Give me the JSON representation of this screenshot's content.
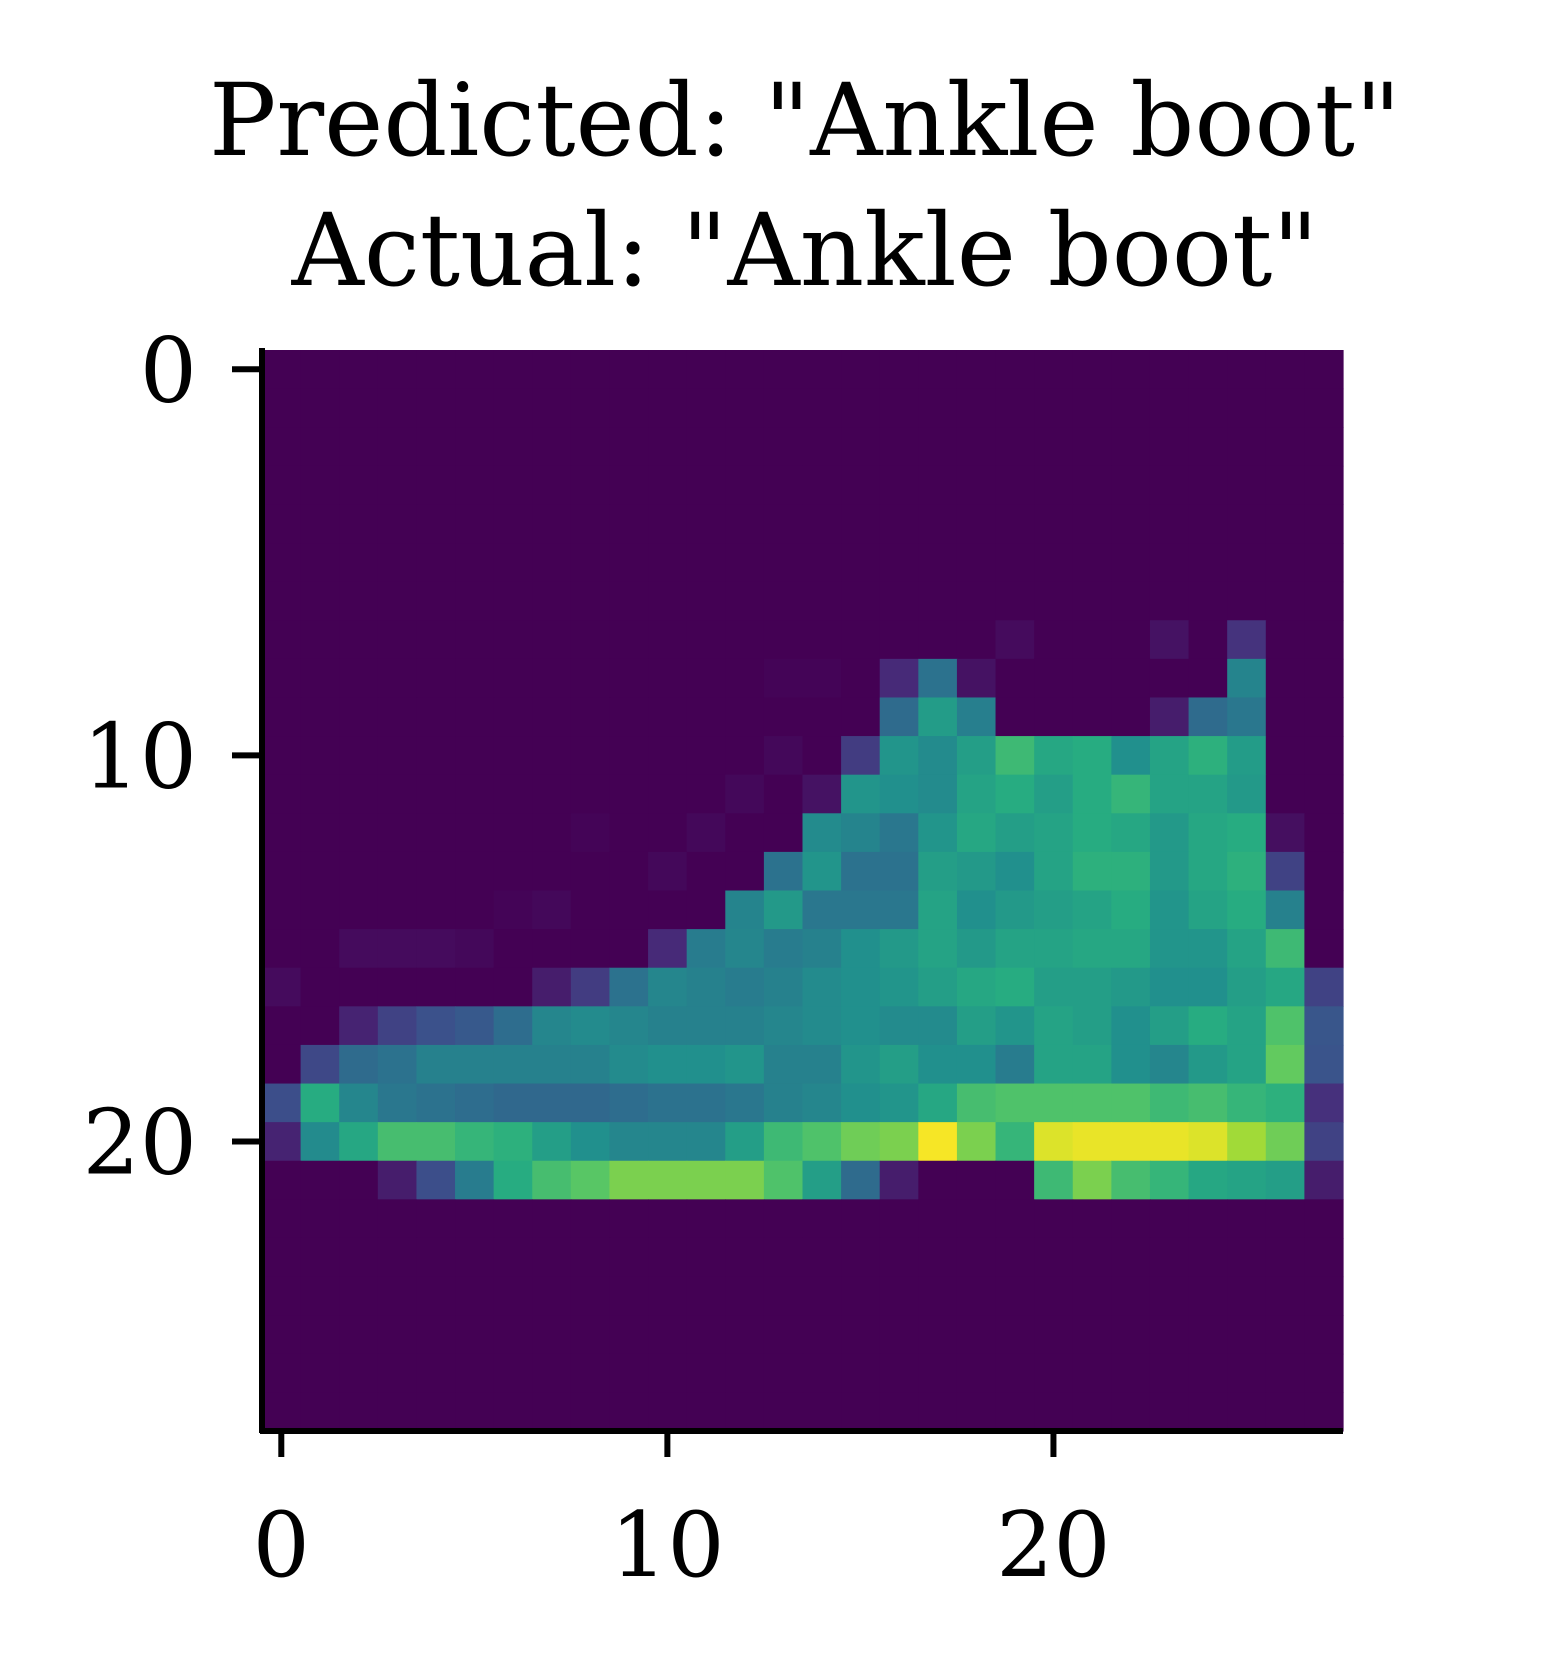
{
  "chart_data": {
    "type": "heatmap",
    "title": "Predicted: \"Ankle boot\"",
    "subtitle": "Actual: \"Ankle boot\"",
    "xlabel": "",
    "ylabel": "",
    "colormap": "viridis",
    "grid": false,
    "xlim": [
      -0.5,
      27.5
    ],
    "ylim": [
      27.5,
      -0.5
    ],
    "xticks": [
      0,
      10,
      20
    ],
    "yticks": [
      0,
      10,
      20
    ],
    "xtick_labels": [
      "0",
      "10",
      "20"
    ],
    "ytick_labels": [
      "0",
      "10",
      "20"
    ],
    "grid_size": [
      28,
      28
    ],
    "value_range": [
      0,
      1
    ],
    "values": [
      [
        0,
        0,
        0,
        0,
        0,
        0,
        0,
        0,
        0,
        0,
        0,
        0,
        0,
        0,
        0,
        0,
        0,
        0,
        0,
        0,
        0,
        0,
        0,
        0,
        0,
        0,
        0,
        0
      ],
      [
        0,
        0,
        0,
        0,
        0,
        0,
        0,
        0,
        0,
        0,
        0,
        0,
        0,
        0,
        0,
        0,
        0,
        0,
        0,
        0,
        0,
        0,
        0,
        0,
        0,
        0,
        0,
        0
      ],
      [
        0,
        0,
        0,
        0,
        0,
        0,
        0,
        0,
        0,
        0,
        0,
        0,
        0,
        0,
        0,
        0,
        0,
        0,
        0,
        0,
        0,
        0,
        0,
        0,
        0,
        0,
        0,
        0
      ],
      [
        0,
        0,
        0,
        0,
        0,
        0,
        0,
        0,
        0,
        0,
        0,
        0,
        0,
        0,
        0,
        0,
        0,
        0,
        0,
        0,
        0,
        0,
        0,
        0,
        0,
        0,
        0,
        0
      ],
      [
        0,
        0,
        0,
        0,
        0,
        0,
        0,
        0,
        0,
        0,
        0,
        0,
        0,
        0,
        0,
        0,
        0,
        0,
        0,
        0,
        0,
        0,
        0,
        0,
        0,
        0,
        0,
        0
      ],
      [
        0,
        0,
        0,
        0,
        0,
        0,
        0,
        0,
        0,
        0,
        0,
        0,
        0,
        0,
        0,
        0,
        0,
        0,
        0,
        0,
        0,
        0,
        0,
        0,
        0,
        0,
        0,
        0
      ],
      [
        0,
        0,
        0,
        0,
        0,
        0,
        0,
        0,
        0,
        0,
        0,
        0,
        0,
        0,
        0,
        0,
        0,
        0,
        0,
        0,
        0,
        0,
        0,
        0,
        0,
        0,
        0,
        0
      ],
      [
        0,
        0,
        0,
        0,
        0,
        0,
        0,
        0,
        0,
        0,
        0,
        0,
        0,
        0,
        0,
        0,
        0,
        0,
        0,
        0.03,
        0,
        0,
        0,
        0.05,
        0,
        0.15,
        0,
        0
      ],
      [
        0,
        0,
        0,
        0,
        0,
        0,
        0,
        0,
        0,
        0,
        0,
        0,
        0,
        0.01,
        0.01,
        0,
        0.12,
        0.38,
        0.05,
        0,
        0,
        0,
        0,
        0,
        0,
        0.45,
        0,
        0
      ],
      [
        0,
        0,
        0,
        0,
        0,
        0,
        0,
        0,
        0,
        0,
        0,
        0,
        0,
        0,
        0,
        0,
        0.35,
        0.55,
        0.43,
        0,
        0,
        0,
        0,
        0.08,
        0.35,
        0.4,
        0,
        0
      ],
      [
        0,
        0,
        0,
        0,
        0,
        0,
        0,
        0,
        0,
        0,
        0,
        0,
        0,
        0.02,
        0,
        0.18,
        0.52,
        0.48,
        0.56,
        0.68,
        0.6,
        0.62,
        0.5,
        0.58,
        0.64,
        0.55,
        0,
        0
      ],
      [
        0,
        0,
        0,
        0,
        0,
        0,
        0,
        0,
        0,
        0,
        0,
        0,
        0.02,
        0,
        0.05,
        0.52,
        0.5,
        0.48,
        0.58,
        0.62,
        0.56,
        0.62,
        0.66,
        0.58,
        0.58,
        0.54,
        0,
        0
      ],
      [
        0,
        0,
        0,
        0,
        0,
        0,
        0,
        0,
        0.01,
        0,
        0,
        0.02,
        0,
        0,
        0.48,
        0.45,
        0.4,
        0.52,
        0.6,
        0.56,
        0.58,
        0.62,
        0.6,
        0.54,
        0.6,
        0.62,
        0.04,
        0
      ],
      [
        0,
        0,
        0,
        0,
        0,
        0,
        0,
        0,
        0,
        0,
        0.02,
        0,
        0,
        0.38,
        0.52,
        0.38,
        0.38,
        0.56,
        0.54,
        0.5,
        0.58,
        0.64,
        0.64,
        0.54,
        0.6,
        0.64,
        0.2,
        0
      ],
      [
        0,
        0,
        0,
        0,
        0,
        0,
        0.01,
        0.02,
        0,
        0,
        0,
        0,
        0.45,
        0.54,
        0.4,
        0.4,
        0.4,
        0.58,
        0.5,
        0.54,
        0.56,
        0.58,
        0.62,
        0.52,
        0.58,
        0.62,
        0.44,
        0
      ],
      [
        0,
        0,
        0.03,
        0.03,
        0.03,
        0.02,
        0,
        0,
        0,
        0,
        0.12,
        0.42,
        0.46,
        0.42,
        0.44,
        0.5,
        0.54,
        0.58,
        0.54,
        0.58,
        0.58,
        0.6,
        0.6,
        0.52,
        0.52,
        0.58,
        0.68,
        0
      ],
      [
        0.03,
        0,
        0,
        0,
        0,
        0,
        0,
        0.08,
        0.18,
        0.38,
        0.46,
        0.44,
        0.42,
        0.44,
        0.48,
        0.5,
        0.52,
        0.56,
        0.6,
        0.62,
        0.56,
        0.56,
        0.54,
        0.5,
        0.5,
        0.56,
        0.6,
        0.2
      ],
      [
        0,
        0,
        0.1,
        0.2,
        0.25,
        0.28,
        0.36,
        0.46,
        0.48,
        0.46,
        0.44,
        0.44,
        0.44,
        0.46,
        0.48,
        0.5,
        0.48,
        0.48,
        0.56,
        0.52,
        0.58,
        0.56,
        0.5,
        0.56,
        0.62,
        0.58,
        0.72,
        0.27
      ],
      [
        0,
        0.22,
        0.35,
        0.38,
        0.44,
        0.44,
        0.44,
        0.44,
        0.44,
        0.48,
        0.5,
        0.5,
        0.52,
        0.44,
        0.44,
        0.52,
        0.56,
        0.5,
        0.5,
        0.42,
        0.58,
        0.58,
        0.5,
        0.46,
        0.54,
        0.58,
        0.76,
        0.26
      ],
      [
        0.24,
        0.62,
        0.46,
        0.4,
        0.38,
        0.36,
        0.34,
        0.34,
        0.34,
        0.36,
        0.38,
        0.38,
        0.4,
        0.44,
        0.46,
        0.5,
        0.52,
        0.6,
        0.7,
        0.72,
        0.72,
        0.72,
        0.72,
        0.68,
        0.7,
        0.66,
        0.64,
        0.14
      ],
      [
        0.1,
        0.48,
        0.6,
        0.7,
        0.7,
        0.66,
        0.64,
        0.56,
        0.5,
        0.46,
        0.46,
        0.46,
        0.56,
        0.68,
        0.72,
        0.78,
        0.8,
        0.99,
        0.8,
        0.66,
        0.95,
        0.97,
        0.97,
        0.97,
        0.95,
        0.86,
        0.78,
        0.2
      ],
      [
        0,
        0,
        0,
        0.08,
        0.24,
        0.42,
        0.62,
        0.7,
        0.74,
        0.8,
        0.8,
        0.8,
        0.8,
        0.72,
        0.56,
        0.35,
        0.08,
        0,
        0,
        0,
        0.68,
        0.8,
        0.7,
        0.66,
        0.6,
        0.58,
        0.56,
        0.08
      ],
      [
        0,
        0,
        0,
        0,
        0,
        0,
        0,
        0,
        0,
        0,
        0,
        0,
        0,
        0,
        0,
        0,
        0,
        0,
        0,
        0,
        0,
        0,
        0,
        0,
        0,
        0,
        0,
        0
      ],
      [
        0,
        0,
        0,
        0,
        0,
        0,
        0,
        0,
        0,
        0,
        0,
        0,
        0,
        0,
        0,
        0,
        0,
        0,
        0,
        0,
        0,
        0,
        0,
        0,
        0,
        0,
        0,
        0
      ],
      [
        0,
        0,
        0,
        0,
        0,
        0,
        0,
        0,
        0,
        0,
        0,
        0,
        0,
        0,
        0,
        0,
        0,
        0,
        0,
        0,
        0,
        0,
        0,
        0,
        0,
        0,
        0,
        0
      ],
      [
        0,
        0,
        0,
        0,
        0,
        0,
        0,
        0,
        0,
        0,
        0,
        0,
        0,
        0,
        0,
        0,
        0,
        0,
        0,
        0,
        0,
        0,
        0,
        0,
        0,
        0,
        0,
        0
      ],
      [
        0,
        0,
        0,
        0,
        0,
        0,
        0,
        0,
        0,
        0,
        0,
        0,
        0,
        0,
        0,
        0,
        0,
        0,
        0,
        0,
        0,
        0,
        0,
        0,
        0,
        0,
        0,
        0
      ],
      [
        0,
        0,
        0,
        0,
        0,
        0,
        0,
        0,
        0,
        0,
        0,
        0,
        0,
        0,
        0,
        0,
        0,
        0,
        0,
        0,
        0,
        0,
        0,
        0,
        0,
        0,
        0,
        0
      ]
    ]
  }
}
